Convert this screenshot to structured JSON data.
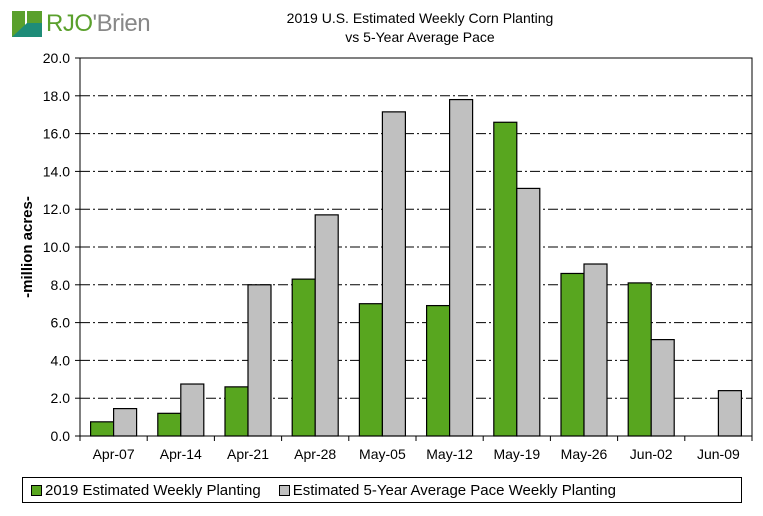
{
  "logo": {
    "text_part1": "RJO",
    "text_part2": "'Brien"
  },
  "chart_data": {
    "type": "bar",
    "title": "2019 U.S. Estimated Weekly Corn Planting",
    "subtitle": "vs 5-Year Average Pace",
    "ylabel": "-million acres-",
    "xlabel": "",
    "ylim": [
      0,
      20
    ],
    "yticks": [
      "0.0",
      "2.0",
      "4.0",
      "6.0",
      "8.0",
      "10.0",
      "12.0",
      "14.0",
      "16.0",
      "18.0",
      "20.0"
    ],
    "grid": "horizontal dash-dot",
    "legend_placement": "bottom",
    "categories": [
      "Apr-07",
      "Apr-14",
      "Apr-21",
      "Apr-28",
      "May-05",
      "May-12",
      "May-19",
      "May-26",
      "Jun-02",
      "Jun-09"
    ],
    "series": [
      {
        "name": "2019 Estimated Weekly Planting",
        "color": "#58a61f",
        "values": [
          0.75,
          1.2,
          2.6,
          8.3,
          7.0,
          6.9,
          16.6,
          8.6,
          8.1,
          null
        ]
      },
      {
        "name": "Estimated 5-Year Average Pace Weekly Planting",
        "color": "#c0c0c0",
        "values": [
          1.45,
          2.75,
          8.0,
          11.7,
          17.15,
          17.8,
          13.1,
          9.1,
          5.1,
          2.4
        ]
      }
    ]
  }
}
